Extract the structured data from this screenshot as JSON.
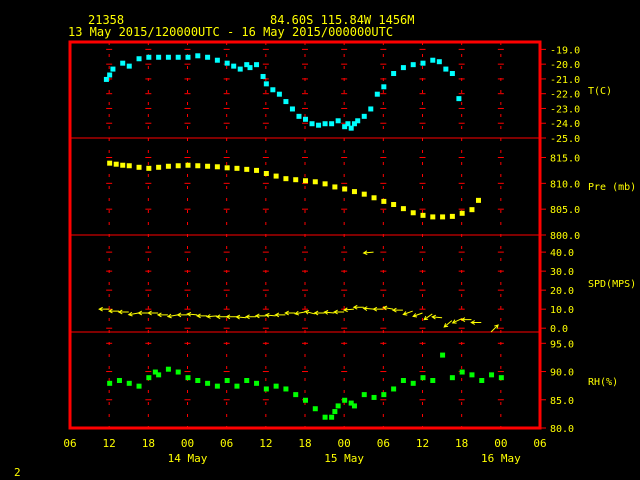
{
  "header": {
    "station_id": "21358",
    "location": "84.60S  115.84W  1456M",
    "time_range": "13 May 2015/120000UTC - 16 May 2015/000000UTC"
  },
  "footer": {
    "page_number": "2"
  },
  "colors": {
    "background": "#000000",
    "frame": "#ff0000",
    "text": "#ffff00",
    "temperature": "#00ffff",
    "pressure": "#ffff00",
    "wind": "#ffff00",
    "humidity": "#00ff00"
  },
  "chart_data": {
    "type": "scatter",
    "x_axis": {
      "ticks": [
        "06",
        "12",
        "18",
        "00",
        "06",
        "12",
        "18",
        "00",
        "06",
        "12",
        "18",
        "00",
        "06"
      ],
      "day_labels": [
        "14 May",
        "15 May",
        "16 May"
      ],
      "range_hours": [
        -6,
        66
      ],
      "tick_step_hours": 6
    },
    "panels": [
      {
        "name": "temperature",
        "label": "T(C)",
        "ylim": [
          -25,
          -18.5
        ],
        "ticks": [
          "-19.0",
          "-20.0",
          "-21.0",
          "-22.0",
          "-23.0",
          "-24.0",
          "-25.0"
        ],
        "tick_values": [
          -19,
          -20,
          -21,
          -22,
          -23,
          -24,
          -25
        ],
        "x": [
          -0.5,
          0,
          0.5,
          2,
          3,
          4.5,
          6,
          7.5,
          9,
          10.5,
          12,
          13.5,
          15,
          16.5,
          18,
          19,
          20,
          21,
          21.5,
          22.5,
          23.5,
          24,
          25,
          26,
          27,
          28,
          29,
          30,
          31,
          32,
          33,
          34,
          35,
          36,
          36.5,
          37,
          37.5,
          38,
          39,
          40,
          41,
          42,
          43.5,
          45,
          46.5,
          48,
          49.5,
          50.5,
          51.5,
          52.5,
          53.5
        ],
        "y": [
          -21.0,
          -20.7,
          -20.3,
          -19.9,
          -20.1,
          -19.6,
          -19.5,
          -19.5,
          -19.5,
          -19.5,
          -19.5,
          -19.4,
          -19.5,
          -19.7,
          -19.9,
          -20.1,
          -20.3,
          -20.0,
          -20.2,
          -20.0,
          -20.8,
          -21.3,
          -21.7,
          -22.0,
          -22.5,
          -23.0,
          -23.5,
          -23.7,
          -24.0,
          -24.1,
          -24.0,
          -24.0,
          -23.8,
          -24.2,
          -24.0,
          -24.3,
          -24.0,
          -23.8,
          -23.5,
          -23.0,
          -22.0,
          -21.5,
          -20.6,
          -20.2,
          -20.0,
          -19.9,
          -19.7,
          -19.8,
          -20.3,
          -20.6,
          -22.3
        ]
      },
      {
        "name": "pressure",
        "label": "Pre (mb)",
        "ylim": [
          800,
          818
        ],
        "ticks": [
          "815.0",
          "810.0",
          "805.0",
          "800.0"
        ],
        "tick_values": [
          815,
          810,
          805,
          800
        ],
        "x": [
          0,
          1,
          2,
          3,
          4.5,
          6,
          7.5,
          9,
          10.5,
          12,
          13.5,
          15,
          16.5,
          18,
          19.5,
          21,
          22.5,
          24,
          25.5,
          27,
          28.5,
          30,
          31.5,
          33,
          34.5,
          36,
          37.5,
          39,
          40.5,
          42,
          43.5,
          45,
          46.5,
          48,
          49.5,
          51,
          52.5,
          54,
          55.5,
          56.5
        ],
        "y": [
          814.0,
          813.8,
          813.6,
          813.5,
          813.2,
          813.0,
          813.2,
          813.4,
          813.5,
          813.6,
          813.5,
          813.4,
          813.3,
          813.1,
          813.0,
          812.8,
          812.6,
          812.0,
          811.5,
          811.0,
          810.8,
          810.6,
          810.4,
          810.0,
          809.4,
          809.0,
          808.5,
          808.0,
          807.3,
          806.6,
          806.0,
          805.2,
          804.4,
          803.9,
          803.6,
          803.6,
          803.7,
          804.3,
          805.0,
          806.8
        ]
      },
      {
        "name": "wind_speed",
        "label": "SPD(MPS)",
        "ylim": [
          -2,
          49
        ],
        "ticks": [
          "40.0",
          "30.0",
          "20.0",
          "10.0",
          "0.0"
        ],
        "tick_values": [
          40,
          30,
          20,
          10,
          0
        ],
        "x": [
          0,
          1.5,
          3,
          4.5,
          6,
          7.5,
          9,
          10.5,
          12,
          13.5,
          15,
          16.5,
          18,
          19.5,
          21,
          22.5,
          24,
          25.5,
          27,
          28.5,
          30,
          31.5,
          33,
          34.5,
          36,
          37.5,
          39,
          40.5,
          42,
          43.5,
          45,
          46.5,
          48,
          49.5,
          51,
          52.5,
          54,
          55.5,
          57,
          58.5
        ],
        "y": [
          10,
          9,
          8.5,
          8,
          8,
          8,
          7,
          7,
          7,
          7,
          6.5,
          6.5,
          6,
          6,
          5.5,
          6,
          6.5,
          6.5,
          7,
          8,
          8.5,
          7.5,
          8,
          8,
          8.5,
          10,
          11,
          10,
          10,
          10,
          9.5,
          9,
          8,
          7.5,
          5.5,
          4,
          5,
          4.5,
          3,
          -2
        ],
        "direction_deg": [
          270,
          270,
          270,
          260,
          270,
          270,
          270,
          260,
          270,
          275,
          270,
          265,
          270,
          270,
          275,
          270,
          270,
          275,
          270,
          270,
          260,
          285,
          270,
          275,
          270,
          265,
          270,
          275,
          270,
          280,
          270,
          250,
          250,
          235,
          275,
          230,
          245,
          270,
          270,
          45
        ],
        "extra_arrow": {
          "x": 40.5,
          "y": 40,
          "direction_deg": 265
        }
      },
      {
        "name": "relative_humidity",
        "label": "RH(%)",
        "ylim": [
          80,
          97
        ],
        "ticks": [
          "95.0",
          "90.0",
          "85.0",
          "80.0"
        ],
        "tick_values": [
          95,
          90,
          85,
          80
        ],
        "x": [
          0,
          1.5,
          3,
          4.5,
          6,
          7,
          7.5,
          9,
          10.5,
          12,
          13.5,
          15,
          16.5,
          18,
          19.5,
          21,
          22.5,
          24,
          25.5,
          27,
          28.5,
          30,
          31.5,
          33,
          34,
          34.5,
          35,
          36,
          37,
          37.5,
          39,
          40.5,
          42,
          43.5,
          45,
          46.5,
          48,
          49.5,
          51,
          52.5,
          54,
          55.5,
          57,
          58.5,
          60
        ],
        "y": [
          88.0,
          88.5,
          88.0,
          87.5,
          89.0,
          90.0,
          89.5,
          90.5,
          90.0,
          89.0,
          88.5,
          88.0,
          87.5,
          88.5,
          87.5,
          88.5,
          88.0,
          87.0,
          87.5,
          87.0,
          86.0,
          85.0,
          83.5,
          82.0,
          82.0,
          83.0,
          84.0,
          85.0,
          84.5,
          84.0,
          86.0,
          85.5,
          86.0,
          87.0,
          88.5,
          88.0,
          89.0,
          88.5,
          93.0,
          89.0,
          90.0,
          89.5,
          88.5,
          89.5,
          89.0
        ]
      }
    ]
  }
}
